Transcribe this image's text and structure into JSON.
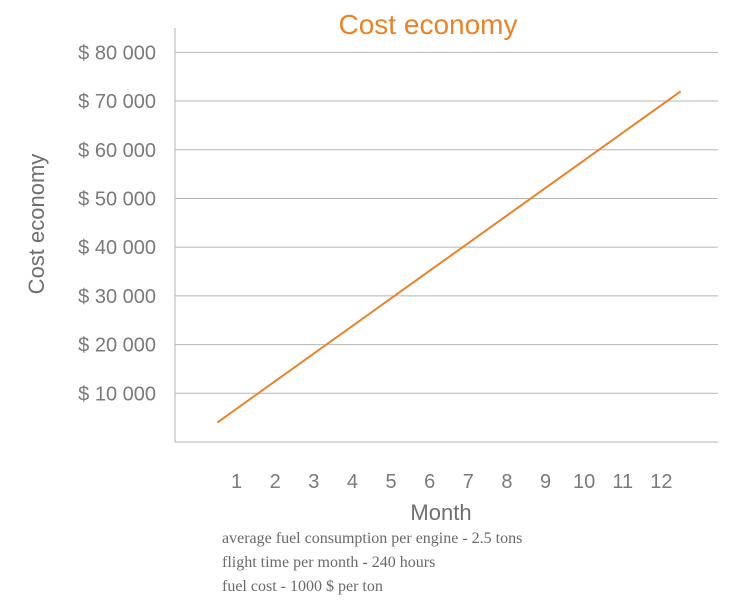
{
  "chart_data": {
    "type": "line",
    "title": "Cost economy",
    "xlabel": "Month",
    "ylabel": "Cost economy",
    "categories": [
      "1",
      "2",
      "3",
      "4",
      "5",
      "6",
      "7",
      "8",
      "9",
      "10",
      "11",
      "12"
    ],
    "y_ticks": [
      {
        "value": 10000,
        "label": "$ 10 000"
      },
      {
        "value": 20000,
        "label": "$ 20 000"
      },
      {
        "value": 30000,
        "label": "$ 30 000"
      },
      {
        "value": 40000,
        "label": "$ 40 000"
      },
      {
        "value": 50000,
        "label": "$ 50 000"
      },
      {
        "value": 60000,
        "label": "$ 60 000"
      },
      {
        "value": 70000,
        "label": "$ 70 000"
      },
      {
        "value": 80000,
        "label": "$ 80 000"
      }
    ],
    "ylim": [
      0,
      85000
    ],
    "xlim": [
      0.0,
      13.0
    ],
    "grid": true,
    "series": [
      {
        "x": [
          0.5,
          12.5
        ],
        "values": [
          4000,
          72000
        ],
        "color": "#E8832A"
      }
    ]
  },
  "notes": [
    "average fuel consumption per engine - 2.5 tons",
    "flight time per month - 240 hours",
    "fuel cost - 1000 $ per ton"
  ]
}
